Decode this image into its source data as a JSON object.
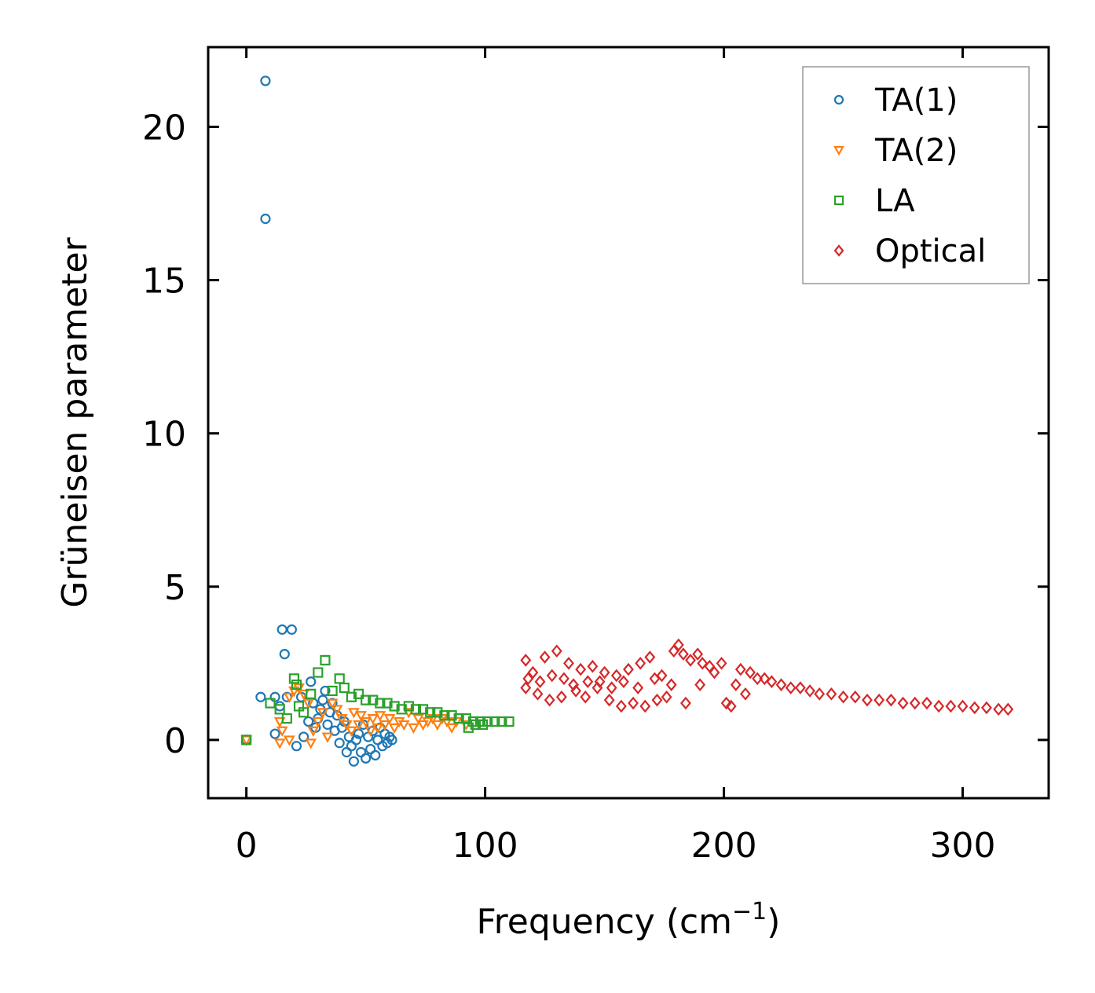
{
  "chart_data": {
    "type": "scatter",
    "title": "",
    "xlabel": "Frequency (cm",
    "xlabel_sup": "−1",
    "xlabel_close": ")",
    "ylabel": "Grüneisen parameter",
    "xlim": [
      -16,
      336
    ],
    "ylim": [
      -1.9,
      22.6
    ],
    "xticks": [
      0,
      100,
      200,
      300
    ],
    "yticks": [
      0,
      5,
      10,
      15,
      20
    ],
    "xtick_labels": [
      "0",
      "100",
      "200",
      "300"
    ],
    "ytick_labels": [
      "0",
      "5",
      "10",
      "15",
      "20"
    ],
    "grid": false,
    "legend_position": "top-right",
    "series": [
      {
        "name": "TA(1)",
        "marker": "circle",
        "color": "#1f77b4",
        "points": [
          [
            0,
            0
          ],
          [
            8,
            21.5
          ],
          [
            8,
            17
          ],
          [
            15,
            3.6
          ],
          [
            19,
            3.6
          ],
          [
            16,
            2.8
          ],
          [
            27,
            1.9
          ],
          [
            6,
            1.4
          ],
          [
            12,
            1.4
          ],
          [
            17,
            1.4
          ],
          [
            14,
            1.1
          ],
          [
            12,
            0.2
          ],
          [
            24,
            0.1
          ],
          [
            21,
            -0.2
          ],
          [
            23,
            1.4
          ],
          [
            28,
            1.2
          ],
          [
            30,
            0.7
          ],
          [
            32,
            1.3
          ],
          [
            33,
            1.6
          ],
          [
            35,
            0.9
          ],
          [
            37,
            0.3
          ],
          [
            39,
            -0.1
          ],
          [
            41,
            0.6
          ],
          [
            42,
            -0.4
          ],
          [
            44,
            -0.2
          ],
          [
            45,
            -0.7
          ],
          [
            47,
            0.2
          ],
          [
            48,
            -0.4
          ],
          [
            49,
            0.5
          ],
          [
            50,
            -0.6
          ],
          [
            51,
            0.1
          ],
          [
            52,
            -0.3
          ],
          [
            53,
            0.3
          ],
          [
            54,
            -0.5
          ],
          [
            55,
            0
          ],
          [
            56,
            0.4
          ],
          [
            57,
            -0.2
          ],
          [
            58,
            0.2
          ],
          [
            59,
            -0.1
          ],
          [
            60,
            0.1
          ],
          [
            61,
            0
          ],
          [
            46,
            0
          ],
          [
            43,
            0.1
          ],
          [
            40,
            0.4
          ],
          [
            36,
            1.2
          ],
          [
            34,
            0.5
          ],
          [
            31,
            1
          ],
          [
            29,
            0.4
          ],
          [
            26,
            0.6
          ],
          [
            38,
            0.8
          ]
        ]
      },
      {
        "name": "TA(2)",
        "marker": "triangle-down",
        "color": "#ff7f0e",
        "points": [
          [
            0,
            0
          ],
          [
            14,
            0.6
          ],
          [
            15,
            0.3
          ],
          [
            14,
            -0.1
          ],
          [
            18,
            0
          ],
          [
            18,
            1.4
          ],
          [
            20,
            1.6
          ],
          [
            22,
            1.7
          ],
          [
            24,
            1.5
          ],
          [
            26,
            1.2
          ],
          [
            27,
            -0.1
          ],
          [
            28,
            0.3
          ],
          [
            30,
            0.6
          ],
          [
            32,
            0.9
          ],
          [
            34,
            0.1
          ],
          [
            36,
            1.2
          ],
          [
            38,
            1
          ],
          [
            40,
            0.7
          ],
          [
            42,
            0.5
          ],
          [
            45,
            0.9
          ],
          [
            48,
            0.8
          ],
          [
            50,
            0.6
          ],
          [
            53,
            0.7
          ],
          [
            56,
            0.8
          ],
          [
            60,
            0.7
          ],
          [
            64,
            0.6
          ],
          [
            68,
            0.9
          ],
          [
            72,
            0.7
          ],
          [
            76,
            0.6
          ],
          [
            80,
            0.5
          ],
          [
            84,
            0.6
          ],
          [
            88,
            0.6
          ],
          [
            92,
            0.5
          ],
          [
            62,
            0.4
          ],
          [
            58,
            0.5
          ],
          [
            66,
            0.5
          ],
          [
            70,
            0.4
          ],
          [
            74,
            0.5
          ],
          [
            78,
            0.7
          ],
          [
            82,
            0.7
          ],
          [
            86,
            0.4
          ],
          [
            44,
            0.3
          ],
          [
            47,
            0.5
          ],
          [
            52,
            0.3
          ],
          [
            55,
            0.4
          ]
        ]
      },
      {
        "name": "LA",
        "marker": "square",
        "color": "#2ca02c",
        "points": [
          [
            0,
            0
          ],
          [
            10,
            1.2
          ],
          [
            14,
            1
          ],
          [
            17,
            0.7
          ],
          [
            20,
            2
          ],
          [
            21,
            1.8
          ],
          [
            22,
            1.1
          ],
          [
            24,
            0.9
          ],
          [
            27,
            1.5
          ],
          [
            30,
            2.2
          ],
          [
            33,
            2.6
          ],
          [
            36,
            1.6
          ],
          [
            39,
            2
          ],
          [
            41,
            1.7
          ],
          [
            44,
            1.4
          ],
          [
            47,
            1.5
          ],
          [
            50,
            1.3
          ],
          [
            53,
            1.3
          ],
          [
            56,
            1.2
          ],
          [
            59,
            1.2
          ],
          [
            62,
            1.1
          ],
          [
            65,
            1
          ],
          [
            68,
            1.1
          ],
          [
            71,
            1
          ],
          [
            74,
            1
          ],
          [
            77,
            0.9
          ],
          [
            80,
            0.9
          ],
          [
            83,
            0.8
          ],
          [
            86,
            0.8
          ],
          [
            89,
            0.7
          ],
          [
            92,
            0.7
          ],
          [
            95,
            0.6
          ],
          [
            98,
            0.6
          ],
          [
            101,
            0.6
          ],
          [
            104,
            0.6
          ],
          [
            107,
            0.6
          ],
          [
            110,
            0.6
          ],
          [
            93,
            0.4
          ],
          [
            96,
            0.5
          ],
          [
            99,
            0.5
          ]
        ]
      },
      {
        "name": "Optical",
        "marker": "diamond",
        "color": "#d62728",
        "points": [
          [
            117,
            2.6
          ],
          [
            117,
            1.7
          ],
          [
            120,
            2.2
          ],
          [
            122,
            1.5
          ],
          [
            125,
            2.7
          ],
          [
            127,
            1.3
          ],
          [
            130,
            2.9
          ],
          [
            132,
            1.4
          ],
          [
            135,
            2.5
          ],
          [
            137,
            1.8
          ],
          [
            140,
            2.3
          ],
          [
            142,
            1.4
          ],
          [
            145,
            2.4
          ],
          [
            147,
            1.7
          ],
          [
            150,
            2.2
          ],
          [
            152,
            1.3
          ],
          [
            155,
            2.1
          ],
          [
            157,
            1.1
          ],
          [
            160,
            2.3
          ],
          [
            162,
            1.2
          ],
          [
            165,
            2.5
          ],
          [
            167,
            1.1
          ],
          [
            169,
            2.7
          ],
          [
            172,
            1.3
          ],
          [
            174,
            2.1
          ],
          [
            176,
            1.4
          ],
          [
            179,
            2.9
          ],
          [
            181,
            3.1
          ],
          [
            183,
            2.8
          ],
          [
            186,
            2.6
          ],
          [
            189,
            2.8
          ],
          [
            191,
            2.5
          ],
          [
            194,
            2.4
          ],
          [
            196,
            2.2
          ],
          [
            199,
            2.5
          ],
          [
            201,
            1.2
          ],
          [
            203,
            1.1
          ],
          [
            205,
            1.8
          ],
          [
            207,
            2.3
          ],
          [
            209,
            1.5
          ],
          [
            211,
            2.2
          ],
          [
            214,
            2
          ],
          [
            217,
            2
          ],
          [
            220,
            1.9
          ],
          [
            224,
            1.8
          ],
          [
            228,
            1.7
          ],
          [
            232,
            1.7
          ],
          [
            236,
            1.6
          ],
          [
            240,
            1.5
          ],
          [
            245,
            1.5
          ],
          [
            250,
            1.4
          ],
          [
            255,
            1.4
          ],
          [
            260,
            1.3
          ],
          [
            265,
            1.3
          ],
          [
            270,
            1.3
          ],
          [
            275,
            1.2
          ],
          [
            280,
            1.2
          ],
          [
            285,
            1.2
          ],
          [
            290,
            1.1
          ],
          [
            295,
            1.1
          ],
          [
            300,
            1.1
          ],
          [
            305,
            1.05
          ],
          [
            310,
            1.05
          ],
          [
            315,
            1
          ],
          [
            319,
            1
          ],
          [
            190,
            1.8
          ],
          [
            184,
            1.2
          ],
          [
            178,
            1.8
          ],
          [
            171,
            2
          ],
          [
            164,
            1.7
          ],
          [
            158,
            1.9
          ],
          [
            153,
            1.7
          ],
          [
            148,
            1.9
          ],
          [
            143,
            1.9
          ],
          [
            138,
            1.6
          ],
          [
            133,
            2
          ],
          [
            128,
            2.1
          ],
          [
            123,
            1.9
          ],
          [
            118,
            2
          ]
        ]
      }
    ]
  }
}
